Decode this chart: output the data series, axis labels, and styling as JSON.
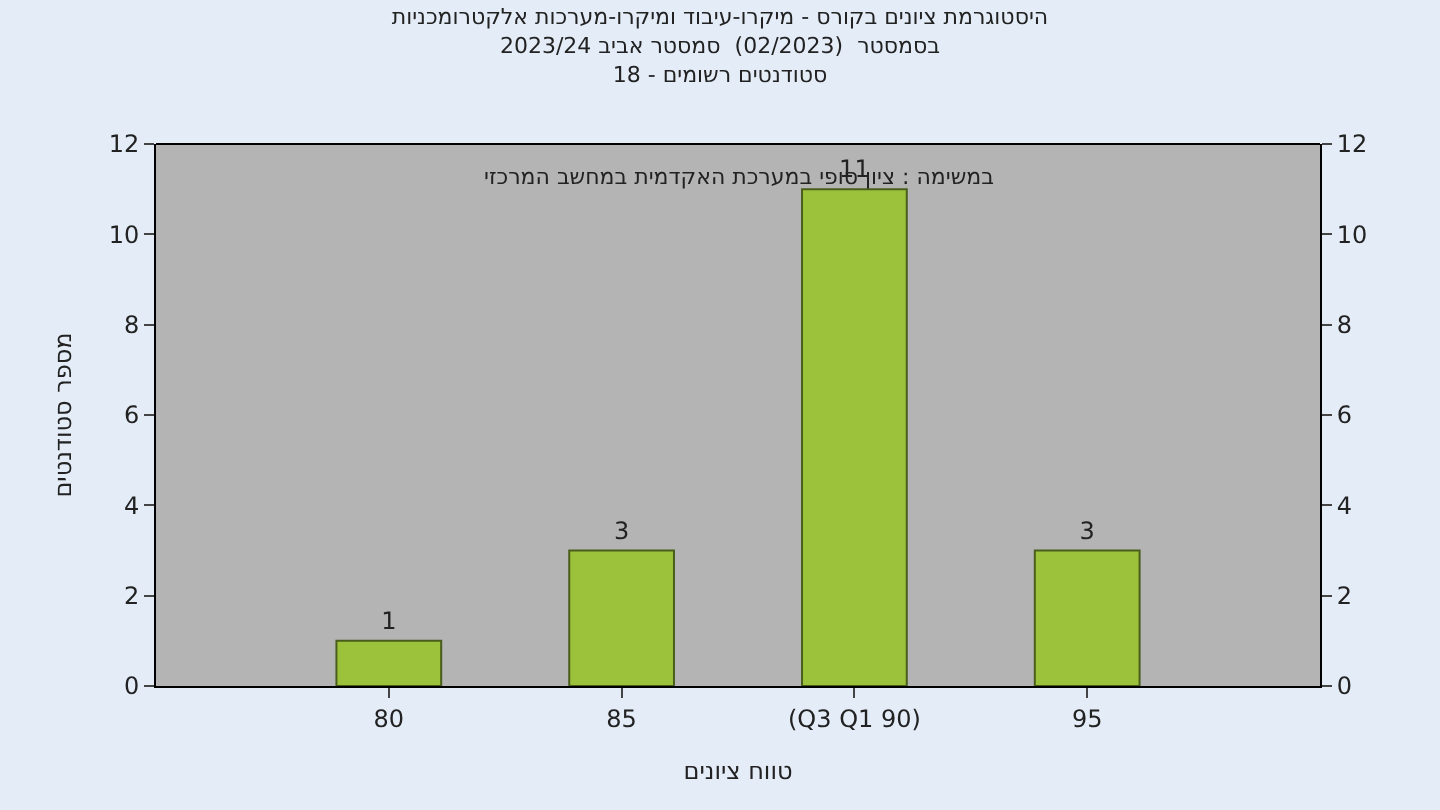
{
  "chart_data": {
    "type": "bar",
    "title": "היסטוגרמת ציונים בקורס - מיקרו-עיבוד ומיקרו-מערכות אלקטרומכניות\nבסמסטר  (02/2023)  סמסטר אביב 2023/24\nסטודנטים רשומים - 18",
    "xlabel": "טווח ציונים",
    "ylabel": "מספר סטודנטים",
    "annotations": [
      "במשימה : ציון סופי במערכת האקדמית במחשב המרכזי"
    ],
    "categories": [
      "80",
      "85",
      "(Q3 Q1 90)",
      "95"
    ],
    "values": [
      1,
      3,
      11,
      3
    ],
    "color": "#9cc23c",
    "ylim": [
      0,
      12
    ],
    "yticks": [
      0,
      2,
      4,
      6,
      8,
      10,
      12
    ],
    "y2lim": [
      0,
      12
    ],
    "y2ticks": [
      0,
      2,
      4,
      6,
      8,
      10,
      12
    ],
    "data_labels": true,
    "grid": false
  }
}
